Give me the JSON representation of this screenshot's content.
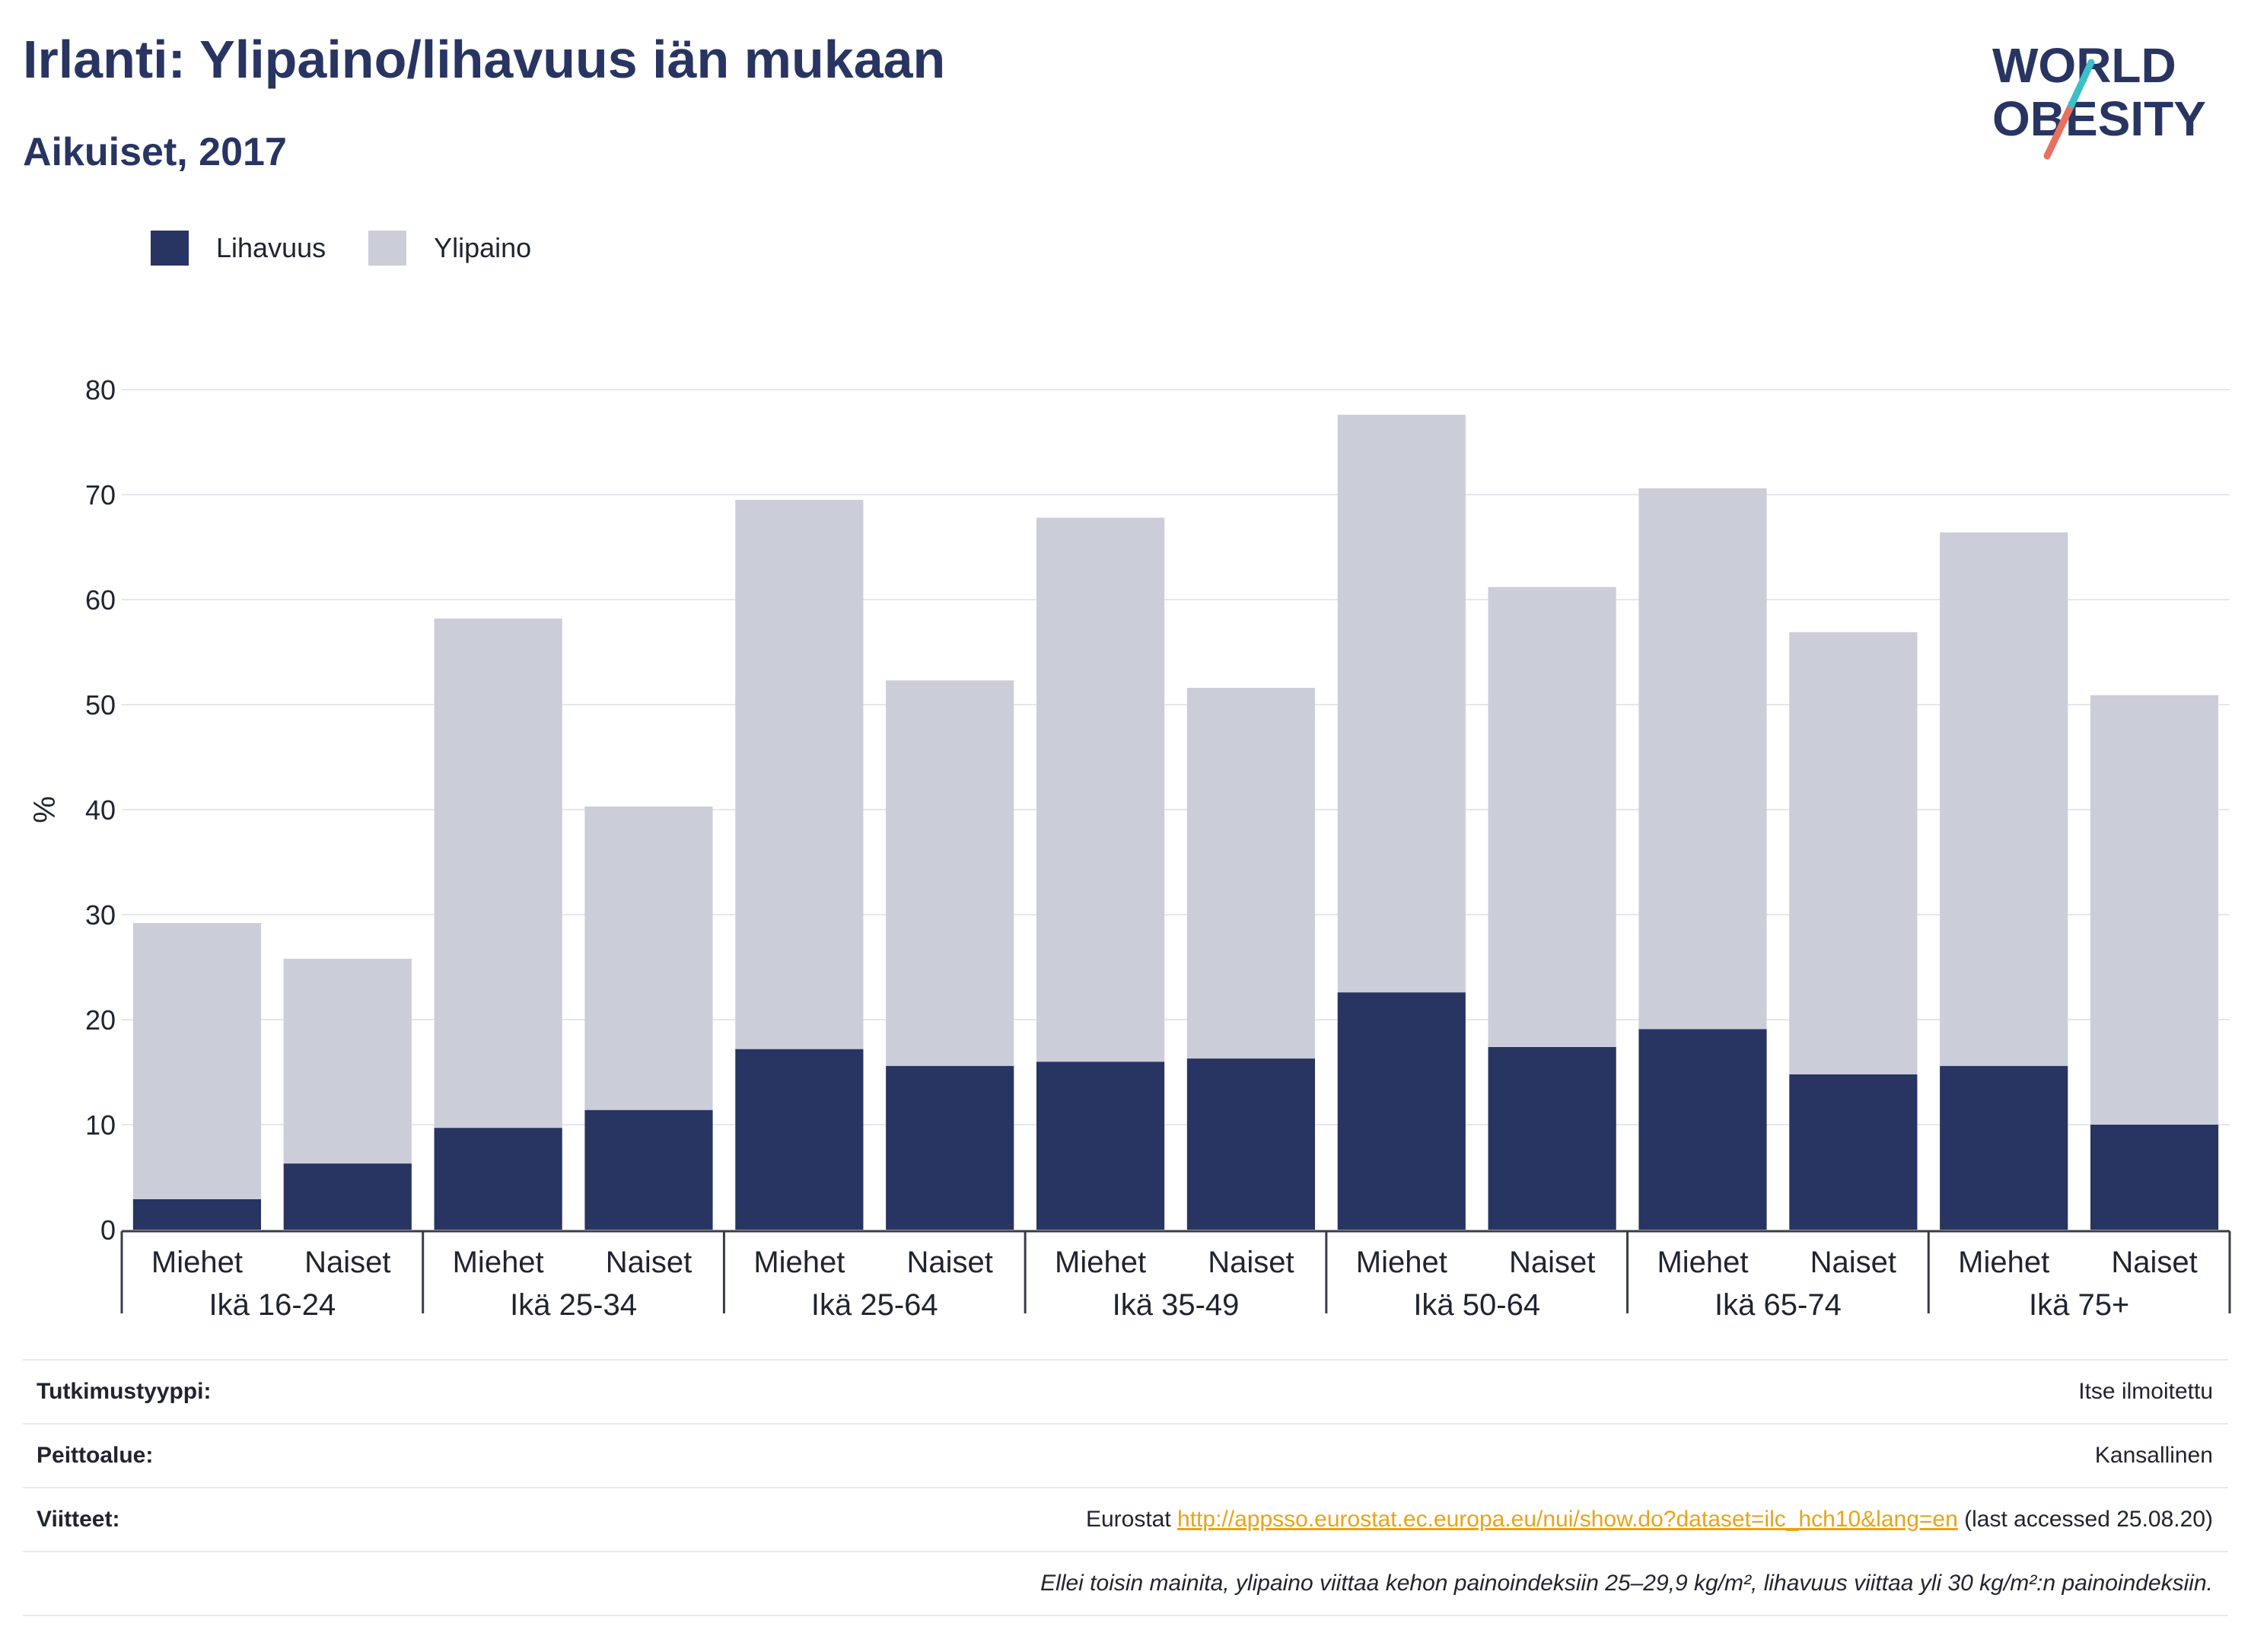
{
  "header": {
    "title": "Irlanti: Ylipaino/lihavuus iän mukaan",
    "subtitle": "Aikuiset, 2017"
  },
  "logo": {
    "line1": "WORLD",
    "line2": "OBESITY"
  },
  "colors": {
    "obesity": "#283562",
    "overweight": "#cbcdd8",
    "accent_teal": "#3bbfc8",
    "accent_coral": "#e8705f",
    "link": "#e8a31a"
  },
  "legend": [
    {
      "label": "Lihavuus",
      "color": "#283562"
    },
    {
      "label": "Ylipaino",
      "color": "#cbcdd8"
    }
  ],
  "chart_data": {
    "type": "bar",
    "stacked": true,
    "ylabel": "%",
    "ylim": [
      0,
      80
    ],
    "yticks": [
      0,
      10,
      20,
      30,
      40,
      50,
      60,
      70,
      80
    ],
    "grid": true,
    "legend_position": "top-left",
    "groups": [
      "Ikä 16-24",
      "Ikä 25-34",
      "Ikä 25-64",
      "Ikä 35-49",
      "Ikä 50-64",
      "Ikä 65-74",
      "Ikä 75+"
    ],
    "sub_categories": [
      "Miehet",
      "Naiset"
    ],
    "series": [
      {
        "name": "Lihavuus",
        "values": [
          2.9,
          6.3,
          9.7,
          11.4,
          17.2,
          15.6,
          16.0,
          16.3,
          22.6,
          17.4,
          19.1,
          14.8,
          15.6,
          10.0
        ]
      },
      {
        "name": "Ylipaino",
        "values": [
          26.3,
          19.5,
          48.5,
          28.9,
          52.3,
          36.7,
          51.8,
          35.3,
          55.0,
          43.8,
          51.5,
          42.1,
          50.8,
          40.9
        ]
      }
    ]
  },
  "info": {
    "study_type_label": "Tutkimustyyppi:",
    "study_type_value": "Itse ilmoitettu",
    "coverage_label": "Peittoalue:",
    "coverage_value": "Kansallinen",
    "references_label": "Viitteet:",
    "references_prefix": "Eurostat",
    "references_link": "http://appsso.eurostat.ec.europa.eu/nui/show.do?dataset=ilc_hch10&lang=en",
    "references_suffix": "(last accessed 25.08.20)",
    "note": "Ellei toisin mainita, ylipaino viittaa kehon painoindeksiin 25–29,9 kg/m², lihavuus viittaa yli 30 kg/m²:n painoindeksiin."
  }
}
